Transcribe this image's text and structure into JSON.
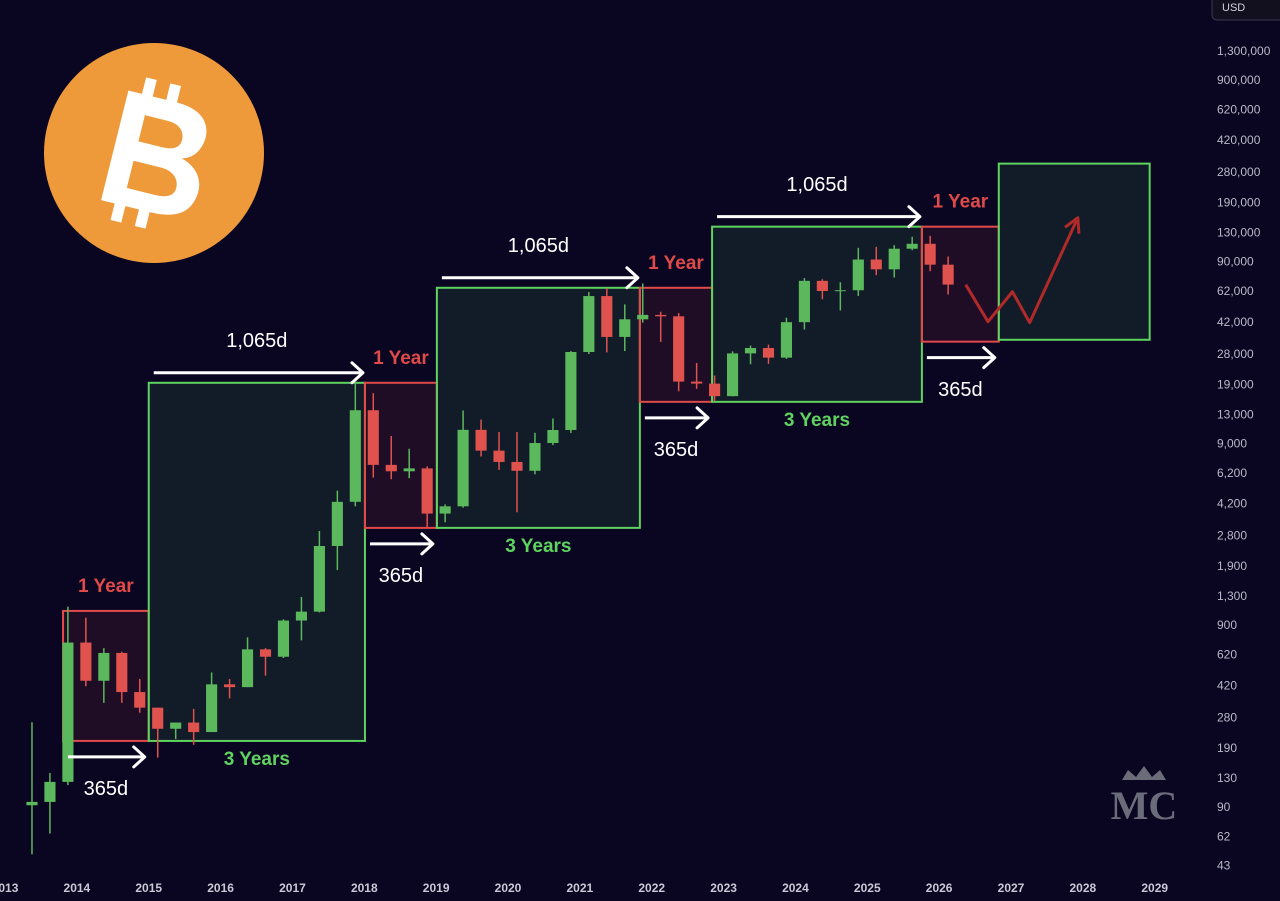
{
  "chart_data": {
    "type": "candlestick",
    "currency": "USD",
    "watermark": "MC",
    "yscale": "log",
    "xlim": [
      2012.93,
      2029.7
    ],
    "ylim": [
      37,
      2500000
    ],
    "xticks": [
      2013,
      2014,
      2015,
      2016,
      2017,
      2018,
      2019,
      2020,
      2021,
      2022,
      2023,
      2024,
      2025,
      2026,
      2027,
      2028,
      2029
    ],
    "yticks": [
      43,
      62,
      90,
      130,
      190,
      280,
      420,
      620,
      900,
      {
        "value": 1300,
        "label": "1,300"
      },
      {
        "value": 1900,
        "label": "1,900"
      },
      {
        "value": 2800,
        "label": "2,800"
      },
      {
        "value": 4200,
        "label": "4,200"
      },
      {
        "value": 6200,
        "label": "6,200"
      },
      {
        "value": 9000,
        "label": "9,000"
      },
      {
        "value": 13000,
        "label": "13,000"
      },
      {
        "value": 19000,
        "label": "19,000"
      },
      {
        "value": 28000,
        "label": "28,000"
      },
      {
        "value": 42000,
        "label": "42,000"
      },
      {
        "value": 62000,
        "label": "62,000"
      },
      {
        "value": 90000,
        "label": "90,000"
      },
      {
        "value": 130000,
        "label": "130,000"
      },
      {
        "value": 190000,
        "label": "190,000"
      },
      {
        "value": 280000,
        "label": "280,000"
      },
      {
        "value": 420000,
        "label": "420,000"
      },
      {
        "value": 620000,
        "label": "620,000"
      },
      {
        "value": 900000,
        "label": "900,000"
      },
      {
        "value": 1300000,
        "label": "1,300,000"
      }
    ],
    "up_color": "#5cb85c",
    "down_color": "#e0524e",
    "x": [
      2013.25,
      2013.5,
      2013.75,
      2014,
      2014.25,
      2014.5,
      2014.75,
      2015,
      2015.25,
      2015.5,
      2015.75,
      2016,
      2016.25,
      2016.5,
      2016.75,
      2017,
      2017.25,
      2017.5,
      2017.75,
      2018,
      2018.25,
      2018.5,
      2018.75,
      2019,
      2019.25,
      2019.5,
      2019.75,
      2020,
      2020.25,
      2020.5,
      2020.75,
      2021,
      2021.25,
      2021.5,
      2021.75,
      2022,
      2022.25,
      2022.5,
      2022.75,
      2023,
      2023.25,
      2023.5,
      2023.75,
      2024,
      2024.25,
      2024.5,
      2024.75,
      2025,
      2025.25,
      2025.5,
      2025.75,
      2026
    ],
    "open": [
      93,
      97,
      125,
      730,
      450,
      640,
      390,
      320,
      245,
      265,
      235,
      430,
      415,
      670,
      610,
      965,
      1080,
      2480,
      4340,
      13850,
      6930,
      6390,
      6630,
      3740,
      4100,
      10800,
      8300,
      7190,
      6430,
      9140,
      10780,
      28950,
      58800,
      35040,
      43800,
      46300,
      45500,
      19900,
      19400,
      16550,
      28450,
      30450,
      26950,
      42250,
      71300,
      62700,
      63300,
      93400,
      82500,
      107100,
      114000,
      87500
    ],
    "high": [
      266,
      140,
      1150,
      1000,
      680,
      650,
      460,
      320,
      265,
      315,
      500,
      460,
      780,
      680,
      980,
      1300,
      3000,
      5000,
      19700,
      17200,
      9990,
      8500,
      6800,
      4200,
      13800,
      12300,
      10500,
      10500,
      10400,
      12470,
      29300,
      61800,
      64900,
      52900,
      69000,
      48200,
      47400,
      25200,
      21500,
      29200,
      31400,
      31800,
      44700,
      73800,
      72800,
      70000,
      108300,
      109600,
      112000,
      124500,
      126000,
      97000
    ],
    "low": [
      50,
      65,
      120,
      420,
      340,
      340,
      300,
      170,
      215,
      200,
      235,
      360,
      415,
      480,
      600,
      750,
      1070,
      1830,
      4100,
      5900,
      5780,
      5850,
      3150,
      3350,
      4030,
      7700,
      6500,
      3800,
      6150,
      8900,
      10370,
      28200,
      28800,
      29300,
      42000,
      32900,
      17600,
      18150,
      15500,
      16500,
      24800,
      24900,
      26550,
      38500,
      56500,
      49000,
      58900,
      76600,
      74400,
      105000,
      80500,
      60000
    ],
    "close": [
      97,
      125,
      730,
      450,
      640,
      390,
      320,
      245,
      265,
      235,
      430,
      415,
      670,
      610,
      965,
      1080,
      2480,
      4340,
      13850,
      6930,
      6390,
      6630,
      3740,
      4100,
      10800,
      8300,
      7190,
      6430,
      9140,
      10780,
      28950,
      58800,
      35040,
      43800,
      46300,
      45500,
      19900,
      19400,
      16550,
      28450,
      30450,
      26950,
      42250,
      71300,
      62700,
      63300,
      93400,
      82500,
      107100,
      114000,
      87500,
      68000
    ],
    "boxes": [
      {
        "x": [
          2013.807,
          2015.0
        ],
        "y": [
          210,
          1090
        ],
        "color": "#e04a4a",
        "label": "1 Year",
        "label_side": "top",
        "span": "365d"
      },
      {
        "x": [
          2015.0,
          2018.009
        ],
        "y": [
          210,
          19600
        ],
        "color": "#5fd35f",
        "label": "3 Years",
        "label_side": "bottom",
        "span": "1,065d"
      },
      {
        "x": [
          2018.009,
          2019.01
        ],
        "y": [
          3120,
          19600
        ],
        "color": "#e04a4a",
        "label": "1 Year",
        "label_side": "top",
        "span": "365d"
      },
      {
        "x": [
          2019.01,
          2021.835
        ],
        "y": [
          3120,
          65300
        ],
        "color": "#5fd35f",
        "label": "3 Years",
        "label_side": "bottom",
        "span": "1,065d"
      },
      {
        "x": [
          2021.835,
          2022.84
        ],
        "y": [
          15400,
          65300
        ],
        "color": "#e04a4a",
        "label": "1 Year",
        "label_side": "top",
        "span": "365d"
      },
      {
        "x": [
          2022.84,
          2025.76
        ],
        "y": [
          15400,
          141600
        ],
        "color": "#5fd35f",
        "label": "3 Years",
        "label_side": "bottom",
        "span": "1,065d"
      },
      {
        "x": [
          2025.76,
          2026.83
        ],
        "y": [
          33000,
          141600
        ],
        "color": "#e04a4a",
        "label": "1 Year",
        "label_side": "top",
        "span": "365d"
      },
      {
        "x": [
          2026.83,
          2028.93
        ],
        "y": [
          33800,
          314700
        ],
        "color": "#5fd35f"
      }
    ],
    "projection": {
      "color": "#b02a2a",
      "x": [
        2026.37,
        2026.68,
        2027.02,
        2027.26,
        2027.93
      ],
      "y": [
        67900,
        42500,
        62100,
        42000,
        158600
      ]
    }
  }
}
